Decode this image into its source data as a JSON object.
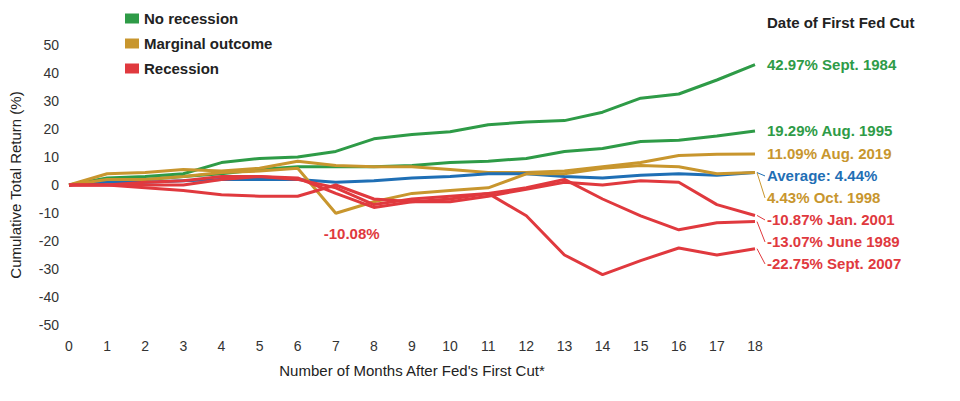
{
  "chart_data": {
    "type": "line",
    "xlabel": "Number of Months After Fed's First Cut*",
    "ylabel": "Cumulative Total Return (%)",
    "label_title": "Date of First Fed Cut",
    "x": [
      0,
      1,
      2,
      3,
      4,
      5,
      6,
      7,
      8,
      9,
      10,
      11,
      12,
      13,
      14,
      15,
      16,
      17,
      18
    ],
    "xlim": [
      0,
      18
    ],
    "xticks": [
      0,
      1,
      2,
      3,
      4,
      5,
      6,
      7,
      8,
      9,
      10,
      11,
      12,
      13,
      14,
      15,
      16,
      17,
      18
    ],
    "ylim": [
      -50,
      50
    ],
    "yticks": [
      -50,
      -40,
      -30,
      -20,
      -10,
      0,
      10,
      20,
      30,
      40,
      50
    ],
    "grid": false,
    "legend": "upper left",
    "legend_groups": [
      {
        "name": "No recession",
        "color": "#2e9b47"
      },
      {
        "name": "Marginal outcome",
        "color": "#c8962e"
      },
      {
        "name": "Recession",
        "color": "#e0393e"
      }
    ],
    "series": [
      {
        "name": "Sept. 1984",
        "group": "No recession",
        "color": "#2e9b47",
        "end_label": "42.97% Sept. 1984",
        "values": [
          0,
          2.5,
          3,
          4,
          8,
          9.5,
          10,
          12,
          16.5,
          18,
          19,
          21.5,
          22.5,
          23,
          26,
          31,
          32.5,
          37.5,
          42.97
        ]
      },
      {
        "name": "Aug. 1995",
        "group": "No recession",
        "color": "#2e9b47",
        "end_label": "19.29% Aug. 1995",
        "values": [
          0,
          1.5,
          2,
          3,
          4,
          5.5,
          6.5,
          6.5,
          6.5,
          7,
          8,
          8.5,
          9.5,
          12,
          13,
          15.5,
          16,
          17.5,
          19.29
        ]
      },
      {
        "name": "Aug. 2019",
        "group": "Marginal outcome",
        "color": "#c8962e",
        "end_label": "11.09% Aug. 2019",
        "values": [
          0,
          4,
          4.5,
          5.5,
          5,
          6,
          8.5,
          7,
          6.5,
          6.5,
          5.5,
          4.5,
          4.5,
          5,
          6.5,
          8,
          10.5,
          11,
          11.09
        ]
      },
      {
        "name": "Average",
        "color": "#1f6fb5",
        "end_label": "Average: 4.44%",
        "values": [
          0,
          1,
          1,
          1.5,
          2,
          2,
          2,
          1,
          1.5,
          2.5,
          3,
          4,
          4,
          3,
          2.5,
          3.5,
          4,
          3.5,
          4.44
        ]
      },
      {
        "name": "Oct. 1998",
        "group": "Marginal outcome",
        "color": "#c8962e",
        "end_label": "4.43% Oct. 1998",
        "values": [
          0,
          2,
          2,
          3,
          4.5,
          5,
          6,
          -10.08,
          -6,
          -3,
          -2,
          -1,
          4,
          4,
          6,
          7,
          6.5,
          4,
          4.43
        ]
      },
      {
        "name": "Jan. 2001",
        "group": "Recession",
        "color": "#e0393e",
        "end_label": "-10.87% Jan. 2001",
        "values": [
          0,
          0,
          -1,
          -2,
          -3.5,
          -4,
          -4,
          0,
          -5,
          -6,
          -6,
          -4,
          -1.5,
          1,
          0,
          1.5,
          1,
          -7,
          -10.87
        ]
      },
      {
        "name": "June 1989",
        "group": "Recession",
        "color": "#e0393e",
        "end_label": "-13.07% June 1989",
        "values": [
          0,
          0,
          0,
          0,
          2,
          3,
          2,
          -1,
          -7,
          -5,
          -4,
          -3,
          -1,
          2,
          -5,
          -11,
          -16,
          -13.5,
          -13.07
        ]
      },
      {
        "name": "Sept. 2007",
        "group": "Recession",
        "color": "#e0393e",
        "end_label": "-22.75% Sept. 2007",
        "values": [
          0,
          0,
          1,
          1.5,
          3,
          3,
          2.5,
          -3,
          -8,
          -6,
          -5,
          -3,
          -11,
          -25,
          -32,
          -27,
          -22.5,
          -25,
          -22.75
        ]
      }
    ],
    "annotations": [
      {
        "series": "Oct. 1998",
        "x": 7,
        "value": -10.08,
        "label": "-10.08%",
        "color": "#e0393e"
      }
    ]
  }
}
